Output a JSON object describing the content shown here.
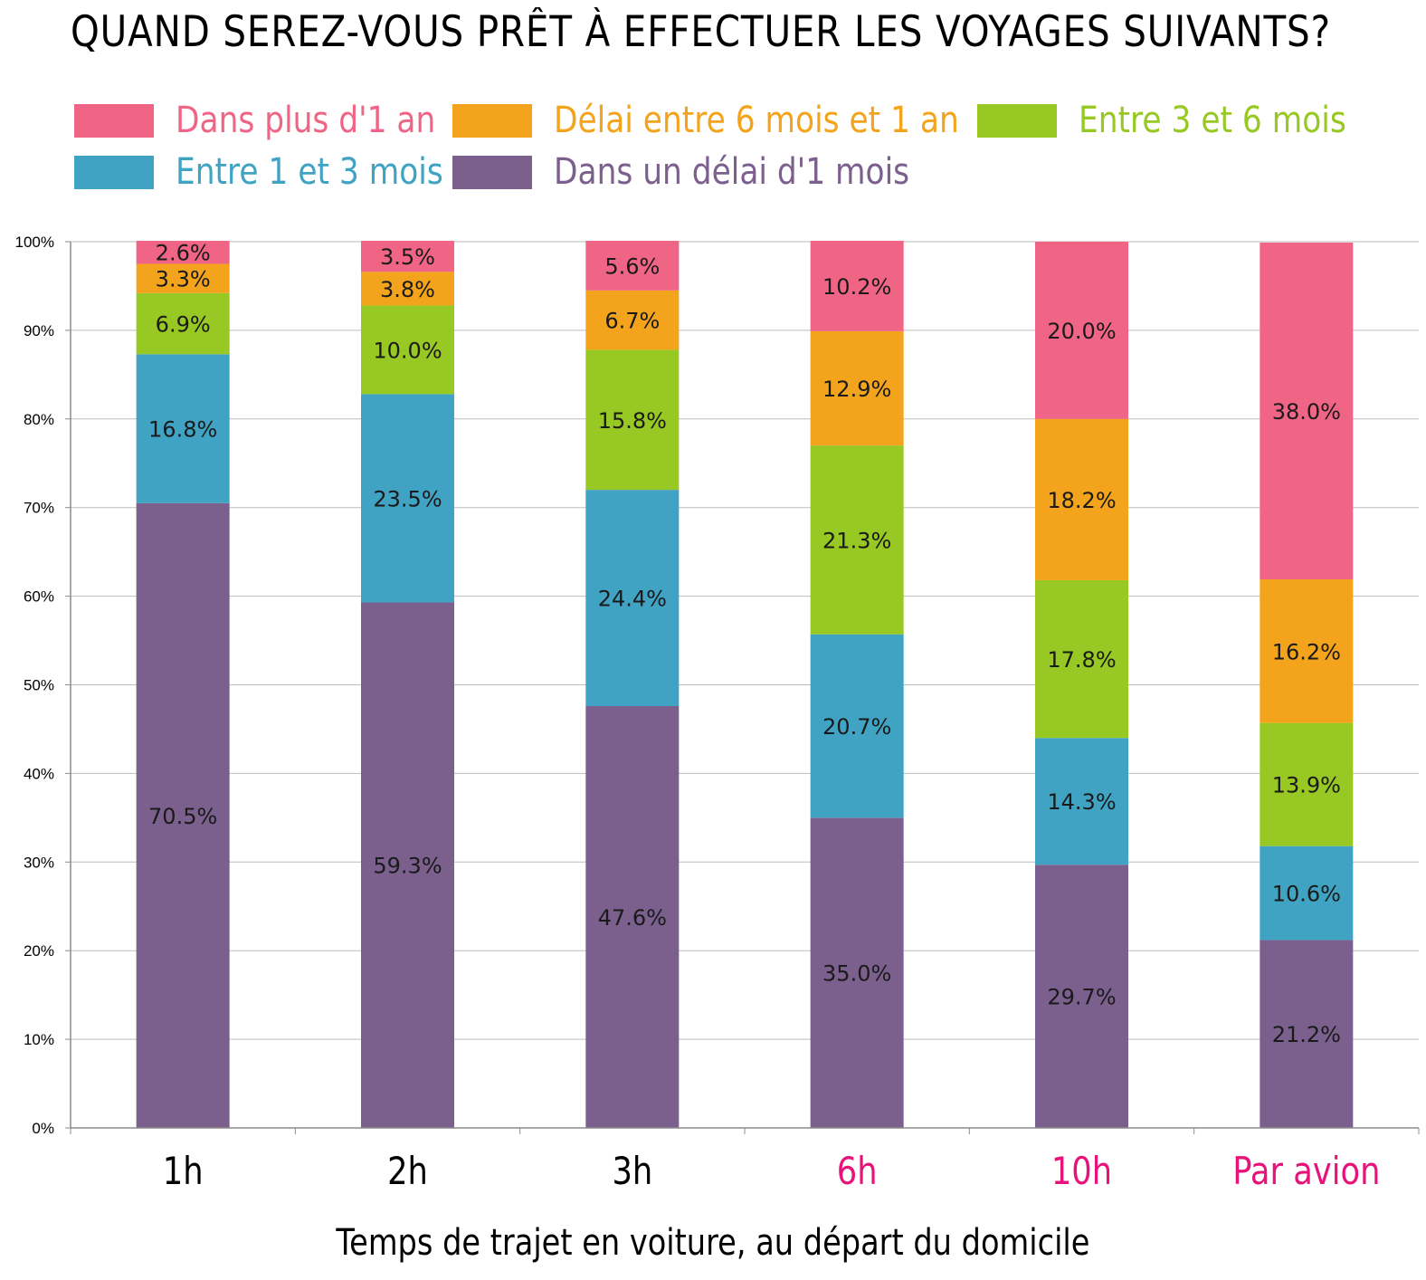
{
  "title": "QUAND SEREZ-VOUS PRÊT À EFFECTUER LES VOYAGES SUIVANTS?",
  "legend": [
    {
      "label": "Dans plus d'1 an",
      "color": "#f06585"
    },
    {
      "label": "Délai entre 6 mois et 1 an",
      "color": "#f4a41c"
    },
    {
      "label": "Entre 3 et 6 mois",
      "color": "#97c823"
    },
    {
      "label": "Entre 1 et 3 mois",
      "color": "#41a3c3"
    },
    {
      "label": "Dans un délai d'1 mois",
      "color": "#7b608e"
    }
  ],
  "chart_data": {
    "type": "bar",
    "stacked": true,
    "title": "QUAND SEREZ-VOUS PRÊT À EFFECTUER LES VOYAGES SUIVANTS?",
    "xlabel": "Temps de trajet en voiture, au départ du domicile",
    "ylabel": "",
    "ylim": [
      0,
      100
    ],
    "yticks": [
      "0%",
      "10%",
      "20%",
      "30%",
      "40%",
      "50%",
      "60%",
      "70%",
      "80%",
      "90%",
      "100%"
    ],
    "grid": true,
    "legend_position": "top",
    "categories": [
      "1h",
      "2h",
      "3h",
      "6h",
      "10h",
      "Par avion"
    ],
    "category_colors": [
      "#000000",
      "#000000",
      "#000000",
      "#e8137a",
      "#e8137a",
      "#e8137a"
    ],
    "series": [
      {
        "name": "Dans un délai d'1 mois",
        "color": "#7b608e",
        "values": [
          70.5,
          59.3,
          47.6,
          35.0,
          29.7,
          21.2
        ],
        "labels": [
          "70.5%",
          "59.3%",
          "47.6%",
          "35.0%",
          "29.7%",
          "21.2%"
        ]
      },
      {
        "name": "Entre 1 et 3 mois",
        "color": "#41a3c3",
        "values": [
          16.8,
          23.5,
          24.4,
          20.7,
          14.3,
          10.6
        ],
        "labels": [
          "16.8%",
          "23.5%",
          "24.4%",
          "20.7%",
          "14.3%",
          "10.6%"
        ]
      },
      {
        "name": "Entre 3 et 6 mois",
        "color": "#97c823",
        "values": [
          6.9,
          10.0,
          15.8,
          21.3,
          17.8,
          13.9
        ],
        "labels": [
          "6.9%",
          "10.0%",
          "15.8%",
          "21.3%",
          "17.8%",
          "13.9%"
        ]
      },
      {
        "name": "Délai entre 6 mois et 1 an",
        "color": "#f4a41c",
        "values": [
          3.3,
          3.8,
          6.7,
          12.9,
          18.2,
          16.2
        ],
        "labels": [
          "3.3%",
          "3.8%",
          "6.7%",
          "12.9%",
          "18.2%",
          "16.2%"
        ]
      },
      {
        "name": "Dans plus d'1 an",
        "color": "#f06585",
        "values": [
          2.6,
          3.5,
          5.6,
          10.2,
          20.0,
          38.0
        ],
        "labels": [
          "2.6%",
          "3.5%",
          "5.6%",
          "10.2%",
          "20.0%",
          "38.0%"
        ]
      }
    ]
  }
}
